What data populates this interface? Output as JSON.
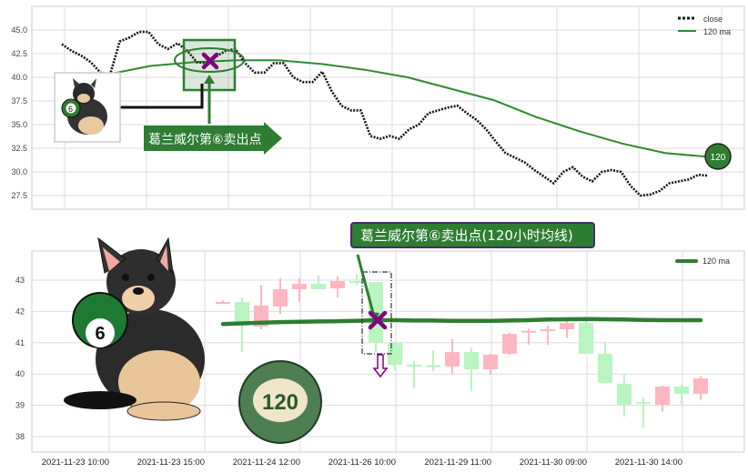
{
  "chart_data": [
    {
      "type": "line",
      "grid": true,
      "legend_position": "top-right",
      "ylim": [
        26.2,
        47.4
      ],
      "yticks": [
        "27.5",
        "30.0",
        "32.5",
        "35.0",
        "37.5",
        "40.0",
        "42.5",
        "45.0"
      ],
      "series": [
        {
          "name": "close",
          "style": "dotted",
          "color": "#111111",
          "values": [
            43.5,
            42.8,
            42.3,
            41.6,
            40.5,
            40.3,
            43.8,
            44.2,
            44.8,
            44.8,
            43.5,
            43.0,
            43.6,
            42.8,
            41.6,
            41.5,
            42.2,
            42.8,
            43.0,
            41.5,
            40.5,
            40.5,
            41.5,
            41.5,
            40.0,
            39.5,
            39.5,
            40.6,
            38.5,
            37.0,
            36.5,
            36.5,
            33.8,
            33.5,
            33.8,
            33.5,
            34.5,
            35.0,
            36.2,
            36.5,
            36.8,
            37.0,
            36.2,
            35.5,
            34.5,
            33.2,
            32.0,
            31.5,
            31.0,
            30.2,
            29.5,
            28.8,
            30.0,
            30.5,
            29.5,
            29.0,
            30.0,
            30.2,
            30.0,
            28.5,
            27.5,
            27.6,
            28.0,
            28.8,
            29.0,
            29.2,
            29.7,
            29.6
          ]
        },
        {
          "name": "120 ma",
          "color": "#2e8b2e",
          "values": [
            40.3,
            41.2,
            41.6,
            41.8,
            41.8,
            41.4,
            40.8,
            40.0,
            38.8,
            37.6,
            35.8,
            34.3,
            33.0,
            32.0,
            31.6
          ]
        }
      ]
    },
    {
      "type": "candlestick",
      "grid": true,
      "legend_position": "top-right",
      "ylim": [
        37.5,
        43.9
      ],
      "yticks": [
        "38",
        "39",
        "40",
        "41",
        "42",
        "43"
      ],
      "xticks": [
        "2021-11-23 10:00",
        "2021-11-23 15:00",
        "2021-11-24 12:00",
        "2021-11-26 10:00",
        "2021-11-29 11:00",
        "2021-11-30 09:00",
        "2021-11-30 14:00"
      ],
      "up_color": "#ffb6c1",
      "down_color": "#b8f5c0",
      "candles": [
        {
          "o": 42.3,
          "h": 42.35,
          "l": 42.25,
          "c": 42.3
        },
        {
          "o": 42.3,
          "h": 42.45,
          "l": 40.7,
          "c": 41.63
        },
        {
          "o": 41.52,
          "h": 42.85,
          "l": 41.43,
          "c": 42.19
        },
        {
          "o": 42.16,
          "h": 43.06,
          "l": 41.92,
          "c": 42.71
        },
        {
          "o": 42.71,
          "h": 43.06,
          "l": 42.3,
          "c": 42.88
        },
        {
          "o": 42.88,
          "h": 43.15,
          "l": 42.7,
          "c": 42.71
        },
        {
          "o": 42.74,
          "h": 43.12,
          "l": 42.45,
          "c": 42.97
        },
        {
          "o": 42.97,
          "h": 43.2,
          "l": 42.85,
          "c": 42.94
        },
        {
          "o": 42.94,
          "h": 42.94,
          "l": 40.7,
          "c": 41.0
        },
        {
          "o": 41.0,
          "h": 41.03,
          "l": 40.12,
          "c": 40.3
        },
        {
          "o": 40.3,
          "h": 40.41,
          "l": 39.54,
          "c": 40.25
        },
        {
          "o": 40.28,
          "h": 40.76,
          "l": 40.09,
          "c": 40.26
        },
        {
          "o": 40.24,
          "h": 41.11,
          "l": 39.98,
          "c": 40.7
        },
        {
          "o": 40.7,
          "h": 40.85,
          "l": 39.45,
          "c": 40.15
        },
        {
          "o": 40.15,
          "h": 40.65,
          "l": 39.98,
          "c": 40.62
        },
        {
          "o": 40.65,
          "h": 41.32,
          "l": 40.62,
          "c": 41.28
        },
        {
          "o": 41.35,
          "h": 41.45,
          "l": 40.94,
          "c": 41.38
        },
        {
          "o": 41.41,
          "h": 41.55,
          "l": 40.93,
          "c": 41.43
        },
        {
          "o": 41.43,
          "h": 41.7,
          "l": 41.16,
          "c": 41.63
        },
        {
          "o": 41.63,
          "h": 41.72,
          "l": 40.65,
          "c": 40.65
        },
        {
          "o": 40.65,
          "h": 41.0,
          "l": 39.72,
          "c": 39.72
        },
        {
          "o": 39.69,
          "h": 39.98,
          "l": 38.64,
          "c": 39.02
        },
        {
          "o": 39.1,
          "h": 39.25,
          "l": 38.29,
          "c": 39.05
        },
        {
          "o": 39.02,
          "h": 39.63,
          "l": 38.8,
          "c": 39.6
        },
        {
          "o": 39.6,
          "h": 39.66,
          "l": 39.02,
          "c": 39.37
        },
        {
          "o": 39.37,
          "h": 39.93,
          "l": 39.17,
          "c": 39.86
        }
      ],
      "series": [
        {
          "name": "120 ma",
          "color": "#2e8b2e",
          "values": [
            41.6,
            41.62,
            41.64,
            41.66,
            41.67,
            41.68,
            41.69,
            41.7,
            41.72,
            41.72,
            41.71,
            41.71,
            41.7,
            41.7,
            41.7,
            41.71,
            41.72,
            41.74,
            41.75,
            41.76,
            41.75,
            41.74,
            41.73,
            41.72,
            41.72,
            41.72
          ]
        }
      ]
    }
  ],
  "annotations": {
    "top_label": "葛兰威尔第⑥卖出点",
    "bottom_label": "葛兰威尔第⑥卖出点(120小时均线)",
    "ma_badge": "120",
    "ball_small": "6",
    "ball_large": "120",
    "mark_color": "#800080",
    "accent_green": "#2e7d32"
  }
}
